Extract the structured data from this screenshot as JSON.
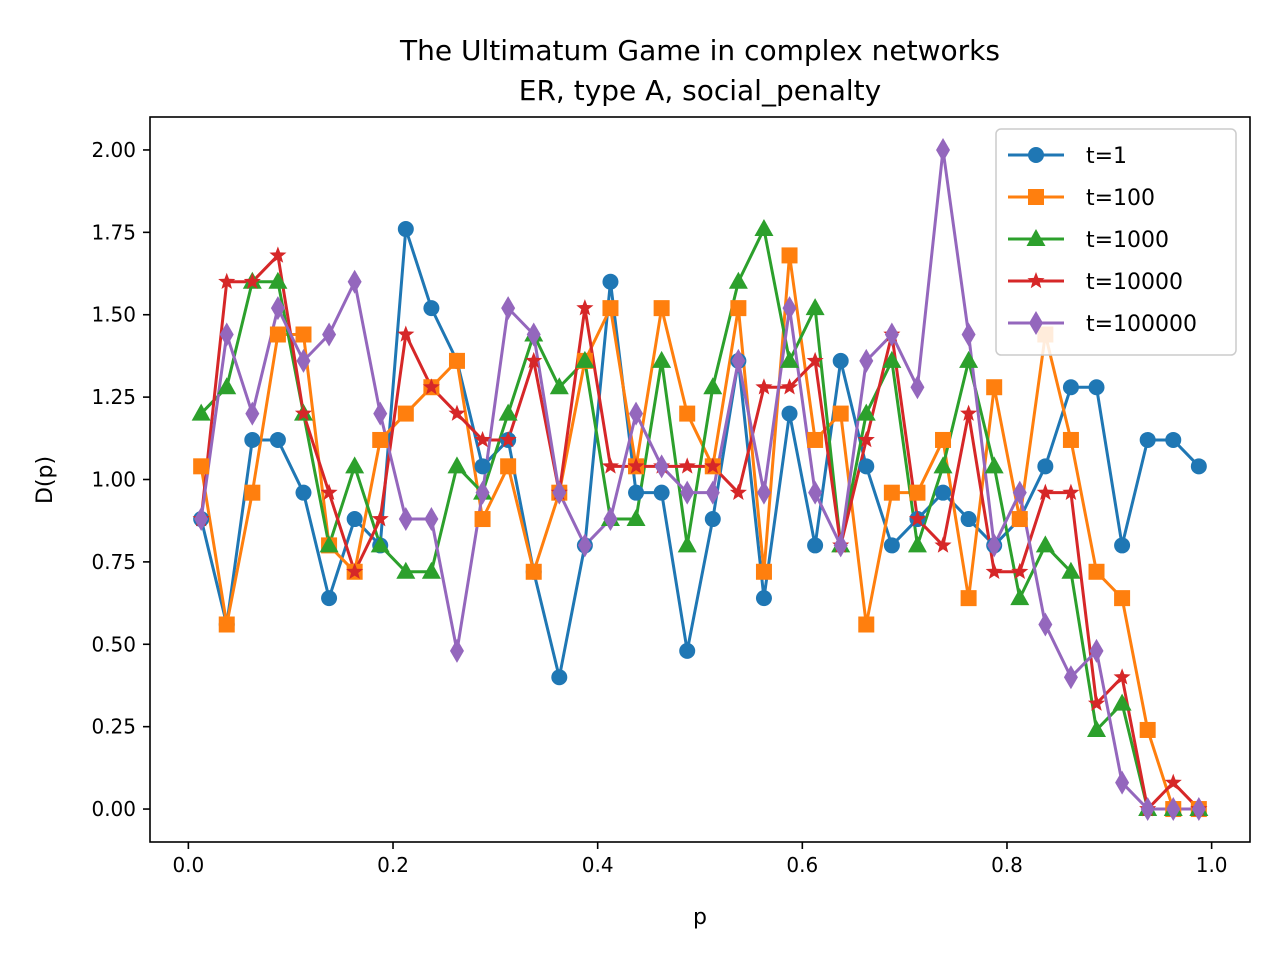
{
  "chart_data": {
    "type": "line",
    "title": "The Ultimatum Game in complex networks",
    "subtitle": "ER, type A, social_penalty",
    "xlabel": "p",
    "ylabel": "D(p)",
    "xlim": [
      -0.0375,
      1.0375
    ],
    "ylim": [
      -0.1,
      2.1
    ],
    "xticks": [
      0.0,
      0.2,
      0.4,
      0.6,
      0.8,
      1.0
    ],
    "xtick_labels": [
      "0.0",
      "0.2",
      "0.4",
      "0.6",
      "0.8",
      "1.0"
    ],
    "yticks": [
      0.0,
      0.25,
      0.5,
      0.75,
      1.0,
      1.25,
      1.5,
      1.75,
      2.0
    ],
    "ytick_labels": [
      "0.00",
      "0.25",
      "0.50",
      "0.75",
      "1.00",
      "1.25",
      "1.50",
      "1.75",
      "2.00"
    ],
    "grid": false,
    "legend_position": "top-right",
    "x": [
      0.0125,
      0.0375,
      0.0625,
      0.0875,
      0.1125,
      0.1375,
      0.1625,
      0.1875,
      0.2125,
      0.2375,
      0.2625,
      0.2875,
      0.3125,
      0.3375,
      0.3625,
      0.3875,
      0.4125,
      0.4375,
      0.4625,
      0.4875,
      0.5125,
      0.5375,
      0.5625,
      0.5875,
      0.6125,
      0.6375,
      0.6625,
      0.6875,
      0.7125,
      0.7375,
      0.7625,
      0.7875,
      0.8125,
      0.8375,
      0.8625,
      0.8875,
      0.9125,
      0.9375,
      0.9625,
      0.9875
    ],
    "series": [
      {
        "name": "t=1",
        "color": "#1f77b4",
        "marker": "circle",
        "values": [
          0.88,
          0.56,
          1.12,
          1.12,
          0.96,
          0.64,
          0.88,
          0.8,
          1.76,
          1.52,
          1.36,
          1.04,
          1.12,
          0.72,
          0.4,
          0.8,
          1.6,
          0.96,
          0.96,
          0.48,
          0.88,
          1.36,
          0.64,
          1.2,
          0.8,
          1.36,
          1.04,
          0.8,
          0.88,
          0.96,
          0.88,
          0.8,
          0.88,
          1.04,
          1.28,
          1.28,
          0.8,
          1.12,
          1.12,
          1.04
        ]
      },
      {
        "name": "t=100",
        "color": "#ff7f0e",
        "marker": "square",
        "values": [
          1.04,
          0.56,
          0.96,
          1.44,
          1.44,
          0.8,
          0.72,
          1.12,
          1.2,
          1.28,
          1.36,
          0.88,
          1.04,
          0.72,
          0.96,
          1.36,
          1.52,
          1.04,
          1.52,
          1.2,
          1.04,
          1.52,
          0.72,
          1.68,
          1.12,
          1.2,
          0.56,
          0.96,
          0.96,
          1.12,
          0.64,
          1.28,
          0.88,
          1.44,
          1.12,
          0.72,
          0.64,
          0.24,
          0.0,
          0.0
        ]
      },
      {
        "name": "t=1000",
        "color": "#2ca02c",
        "marker": "triangle",
        "values": [
          1.2,
          1.28,
          1.6,
          1.6,
          1.2,
          0.8,
          1.04,
          0.8,
          0.72,
          0.72,
          1.04,
          0.96,
          1.2,
          1.44,
          1.28,
          1.36,
          0.88,
          0.88,
          1.36,
          0.8,
          1.28,
          1.6,
          1.76,
          1.36,
          1.52,
          0.8,
          1.2,
          1.36,
          0.8,
          1.04,
          1.36,
          1.04,
          0.64,
          0.8,
          0.72,
          0.24,
          0.32,
          0.0,
          0.0,
          0.0
        ]
      },
      {
        "name": "t=10000",
        "color": "#d62728",
        "marker": "star",
        "values": [
          0.88,
          1.6,
          1.6,
          1.68,
          1.2,
          0.96,
          0.72,
          0.88,
          1.44,
          1.28,
          1.2,
          1.12,
          1.12,
          1.36,
          0.96,
          1.52,
          1.04,
          1.04,
          1.04,
          1.04,
          1.04,
          0.96,
          1.28,
          1.28,
          1.36,
          0.8,
          1.12,
          1.44,
          0.88,
          0.8,
          1.2,
          0.72,
          0.72,
          0.96,
          0.96,
          0.32,
          0.4,
          0.0,
          0.08,
          0.0
        ]
      },
      {
        "name": "t=100000",
        "color": "#9467bd",
        "marker": "diamond",
        "values": [
          0.88,
          1.44,
          1.2,
          1.52,
          1.36,
          1.44,
          1.6,
          1.2,
          0.88,
          0.88,
          0.48,
          0.96,
          1.52,
          1.44,
          0.96,
          0.8,
          0.88,
          1.2,
          1.04,
          0.96,
          0.96,
          1.36,
          0.96,
          1.52,
          0.96,
          0.8,
          1.36,
          1.44,
          1.28,
          2.0,
          1.44,
          0.8,
          0.96,
          0.56,
          0.4,
          0.48,
          0.08,
          0.0,
          0.0,
          0.0
        ]
      }
    ]
  }
}
